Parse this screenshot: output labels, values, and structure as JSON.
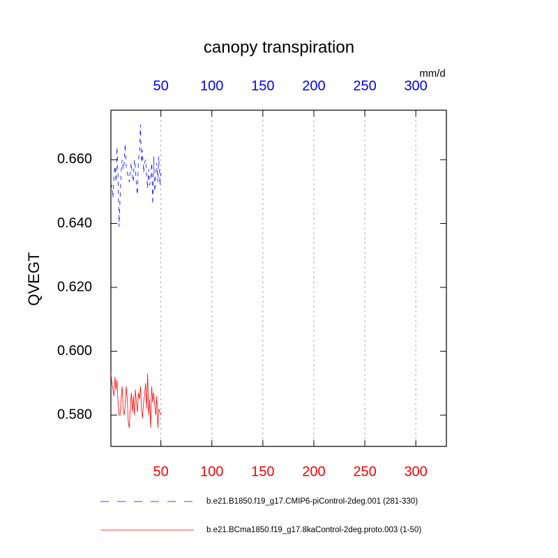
{
  "chart_data": {
    "type": "line",
    "title": "canopy transpiration",
    "ylabel": "QVEGT",
    "units_label": "mm/d",
    "x": [
      1,
      2,
      3,
      4,
      5,
      6,
      7,
      8,
      9,
      10,
      11,
      12,
      13,
      14,
      15,
      16,
      17,
      18,
      19,
      20,
      21,
      22,
      23,
      24,
      25,
      26,
      27,
      28,
      29,
      30,
      31,
      32,
      33,
      34,
      35,
      36,
      37,
      38,
      39,
      40,
      41,
      42,
      43,
      44,
      45,
      46,
      47,
      48,
      49,
      50
    ],
    "series": [
      {
        "name": "b.e21.B1850.f19_g17.CMIP6-piControl-2deg.001 (281-330)",
        "color": "#0000ff",
        "dash": "6,6",
        "values": [
          0.651,
          0.652,
          0.648,
          0.655,
          0.658,
          0.653,
          0.664,
          0.655,
          0.639,
          0.648,
          0.656,
          0.66,
          0.657,
          0.659,
          0.665,
          0.658,
          0.656,
          0.655,
          0.653,
          0.657,
          0.659,
          0.655,
          0.653,
          0.66,
          0.658,
          0.652,
          0.649,
          0.66,
          0.662,
          0.671,
          0.659,
          0.663,
          0.656,
          0.659,
          0.66,
          0.655,
          0.651,
          0.657,
          0.652,
          0.654,
          0.659,
          0.646,
          0.661,
          0.65,
          0.655,
          0.659,
          0.653,
          0.661,
          0.652,
          0.656
        ]
      },
      {
        "name": "b.e21.BCma1850.f19_g17.8kaControl-2deg.proto.003 (1-50)",
        "color": "#ff0000",
        "dash": "none",
        "values": [
          0.593,
          0.59,
          0.588,
          0.586,
          0.592,
          0.588,
          0.591,
          0.584,
          0.58,
          0.58,
          0.585,
          0.589,
          0.582,
          0.58,
          0.583,
          0.589,
          0.585,
          0.578,
          0.576,
          0.582,
          0.587,
          0.581,
          0.586,
          0.58,
          0.588,
          0.584,
          0.581,
          0.587,
          0.585,
          0.589,
          0.582,
          0.579,
          0.584,
          0.586,
          0.59,
          0.582,
          0.593,
          0.58,
          0.585,
          0.576,
          0.589,
          0.584,
          0.587,
          0.583,
          0.58,
          0.586,
          0.576,
          0.582,
          0.581,
          0.58
        ]
      }
    ],
    "xlim": [
      1,
      330
    ],
    "xticks": [
      50,
      100,
      150,
      200,
      250,
      300
    ],
    "ylim": [
      0.5702,
      0.6755
    ],
    "yticks": [
      {
        "value": 0.58,
        "label": "0.580"
      },
      {
        "value": 0.6,
        "label": "0.600"
      },
      {
        "value": 0.62,
        "label": "0.620"
      },
      {
        "value": 0.64,
        "label": "0.640"
      },
      {
        "value": 0.66,
        "label": "0.660"
      }
    ],
    "top_axis_color": "#0000ff",
    "bottom_axis_color": "#ff0000",
    "grid": "x"
  }
}
